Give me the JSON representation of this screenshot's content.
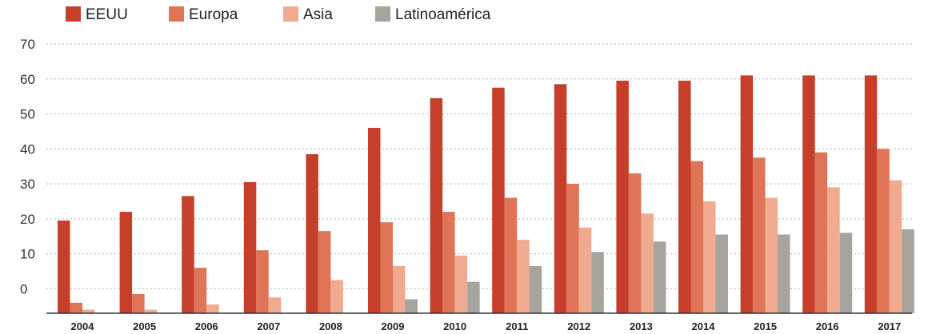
{
  "chart_data": {
    "type": "bar",
    "title": "",
    "xlabel": "",
    "ylabel": "",
    "categories": [
      "2004",
      "2005",
      "2006",
      "2007",
      "2008",
      "2009",
      "2010",
      "2011",
      "2012",
      "2013",
      "2014",
      "2015",
      "2016",
      "2017"
    ],
    "yticks": [
      {
        "value": 70,
        "label": "70"
      },
      {
        "value": 60,
        "label": "60"
      },
      {
        "value": 50,
        "label": "50"
      },
      {
        "value": 40,
        "label": "40"
      },
      {
        "value": 30,
        "label": "30"
      },
      {
        "value": 20,
        "label": "20"
      },
      {
        "value": 10,
        "label": "10"
      },
      {
        "value": 0,
        "label": "0"
      }
    ],
    "ylim": [
      -7,
      70
    ],
    "grid": true,
    "legend_position": "top-left",
    "series": [
      {
        "name": "EEUU",
        "color": "#c63f2b",
        "values": [
          19.5,
          22,
          26.5,
          30.5,
          38.5,
          46,
          54.5,
          57.5,
          58.5,
          59.5,
          59.5,
          61,
          61,
          61
        ]
      },
      {
        "name": "Europa",
        "color": "#e07457",
        "values": [
          -4,
          -1.5,
          6,
          11,
          16.5,
          19,
          22,
          26,
          30,
          33,
          36.5,
          37.5,
          39,
          40
        ]
      },
      {
        "name": "Asia",
        "color": "#f0aa90",
        "values": [
          -6,
          -6,
          -4.5,
          -2.5,
          2.5,
          6.5,
          9.5,
          14,
          17.5,
          21.5,
          25,
          26,
          29,
          31
        ]
      },
      {
        "name": "Latinoamérica",
        "color": "#a7a39d",
        "values": [
          null,
          null,
          null,
          null,
          null,
          -3,
          2,
          6.5,
          10.5,
          13.5,
          15.5,
          15.5,
          16,
          17
        ]
      }
    ]
  }
}
